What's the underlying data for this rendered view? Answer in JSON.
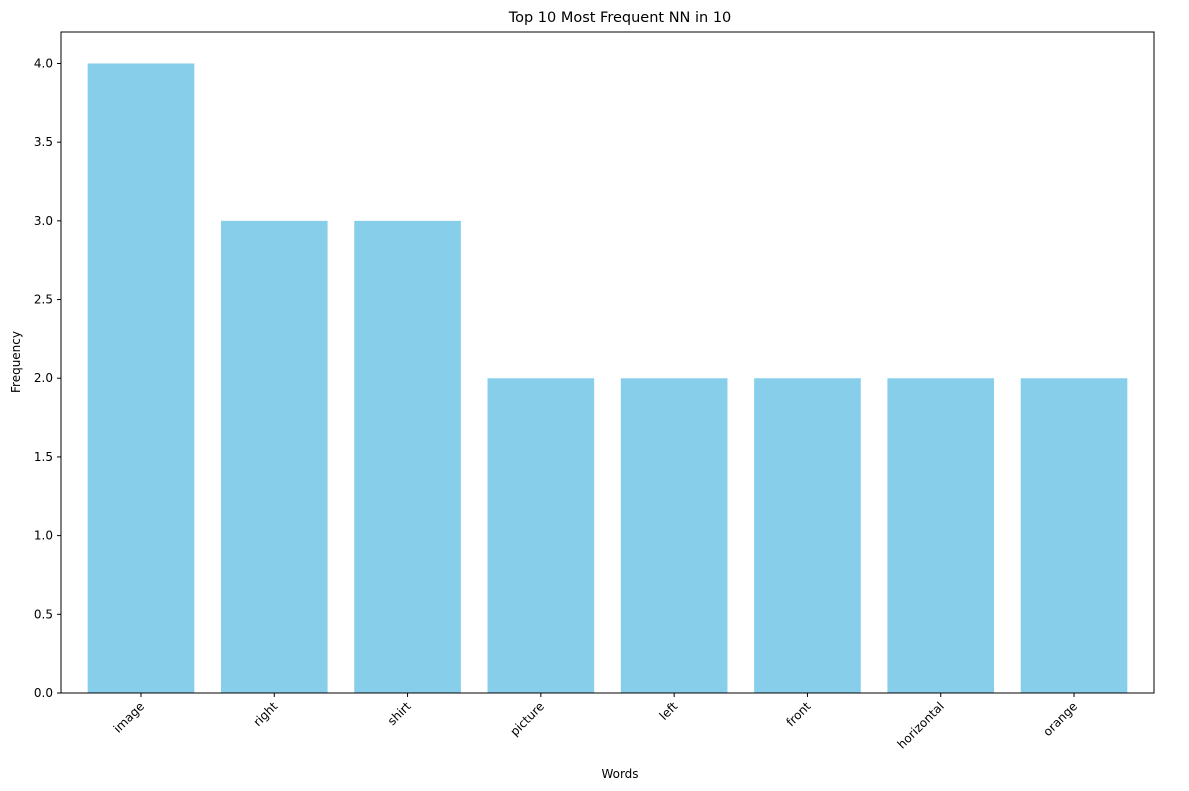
{
  "chart_data": {
    "type": "bar",
    "title": "Top 10 Most Frequent NN in 10",
    "xlabel": "Words",
    "ylabel": "Frequency",
    "categories": [
      "image",
      "right",
      "shirt",
      "picture",
      "left",
      "front",
      "horizontal",
      "orange"
    ],
    "values": [
      4,
      3,
      3,
      2,
      2,
      2,
      2,
      2
    ],
    "ylim": [
      0,
      4.2
    ],
    "yticks": [
      0.0,
      0.5,
      1.0,
      1.5,
      2.0,
      2.5,
      3.0,
      3.5,
      4.0
    ],
    "ytick_labels": [
      "0.0",
      "0.5",
      "1.0",
      "1.5",
      "2.0",
      "2.5",
      "3.0",
      "3.5",
      "4.0"
    ],
    "bar_color": "#87CEEB",
    "grid": false,
    "xtick_rotation": "45 degrees"
  }
}
